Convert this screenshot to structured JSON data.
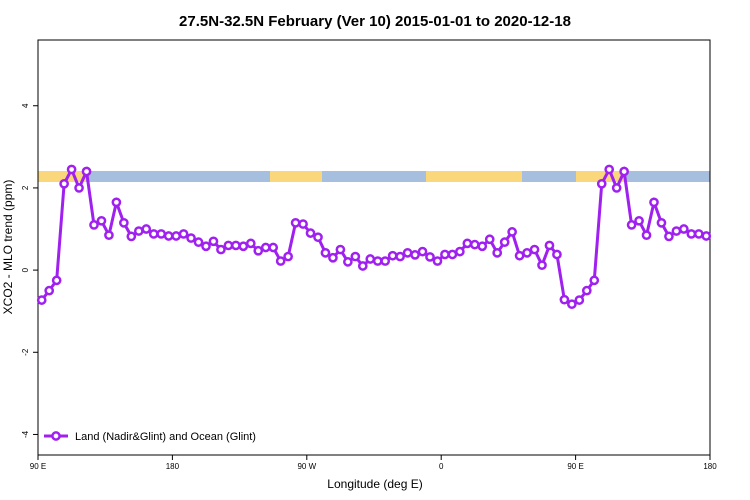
{
  "chart_data": {
    "type": "line",
    "title": "27.5N-32.5N February (Ver 10)   2015-01-01 to 2020-12-18",
    "x_label": "Longitude (deg E)",
    "y_label": "XCO2 - MLO trend (ppm)",
    "xlim": [
      90,
      540
    ],
    "ylim": [
      -4.5,
      5.6
    ],
    "xticks": [
      {
        "value": 90,
        "label": "90 E"
      },
      {
        "value": 180,
        "label": "180"
      },
      {
        "value": 270,
        "label": "90 W"
      },
      {
        "value": 360,
        "label": "0"
      },
      {
        "value": 450,
        "label": "90 E"
      },
      {
        "value": 540,
        "label": "180"
      }
    ],
    "yticks": [
      -4,
      -2,
      0,
      2,
      4
    ],
    "legend_position": "bottom-left",
    "series": [
      {
        "name": "Land (Nadir&Glint) and Ocean (Glint)",
        "color": "#a020f0",
        "x": [
          92.5,
          97.5,
          102.5,
          107.5,
          112.5,
          117.5,
          122.5,
          127.5,
          132.5,
          137.5,
          142.5,
          147.5,
          152.5,
          157.5,
          162.5,
          167.5,
          172.5,
          177.5,
          182.5,
          187.5,
          192.5,
          197.5,
          202.5,
          207.5,
          212.5,
          217.5,
          222.5,
          227.5,
          232.5,
          237.5,
          242.5,
          247.5,
          252.5,
          257.5,
          262.5,
          267.5,
          272.5,
          277.5,
          282.5,
          287.5,
          292.5,
          297.5,
          302.5,
          307.5,
          312.5,
          317.5,
          322.5,
          327.5,
          332.5,
          337.5,
          342.5,
          347.5,
          352.5,
          357.5,
          362.5,
          367.5,
          372.5,
          377.5,
          382.5,
          387.5,
          392.5,
          397.5,
          402.5,
          407.5,
          412.5,
          417.5,
          422.5,
          427.5,
          432.5,
          437.5,
          442.5,
          447.5,
          452.5,
          457.5,
          462.5,
          467.5,
          472.5,
          477.5,
          482.5,
          487.5,
          492.5,
          497.5,
          502.5,
          507.5,
          512.5,
          517.5,
          522.5,
          527.5,
          532.5,
          537.5
        ],
        "values": [
          -0.73,
          -0.5,
          -0.25,
          2.1,
          2.45,
          2.0,
          2.4,
          1.1,
          1.2,
          0.85,
          1.65,
          1.15,
          0.82,
          0.95,
          1.0,
          0.88,
          0.88,
          0.83,
          0.83,
          0.88,
          0.78,
          0.68,
          0.58,
          0.7,
          0.5,
          0.6,
          0.6,
          0.58,
          0.65,
          0.47,
          0.55,
          0.55,
          0.22,
          0.33,
          1.15,
          1.12,
          0.9,
          0.8,
          0.42,
          0.3,
          0.5,
          0.2,
          0.33,
          0.1,
          0.27,
          0.22,
          0.22,
          0.35,
          0.33,
          0.42,
          0.37,
          0.45,
          0.32,
          0.22,
          0.38,
          0.38,
          0.45,
          0.65,
          0.62,
          0.58,
          0.75,
          0.42,
          0.68,
          0.93,
          0.35,
          0.42,
          0.5,
          0.12,
          0.6,
          0.38,
          -0.72,
          -0.83,
          -0.73,
          -0.5,
          -0.25,
          2.1,
          2.45,
          2.0,
          2.4,
          1.1,
          1.2,
          0.85,
          1.65,
          1.15,
          0.82,
          0.95,
          1.0,
          0.88,
          0.88,
          0.83
        ]
      }
    ]
  }
}
